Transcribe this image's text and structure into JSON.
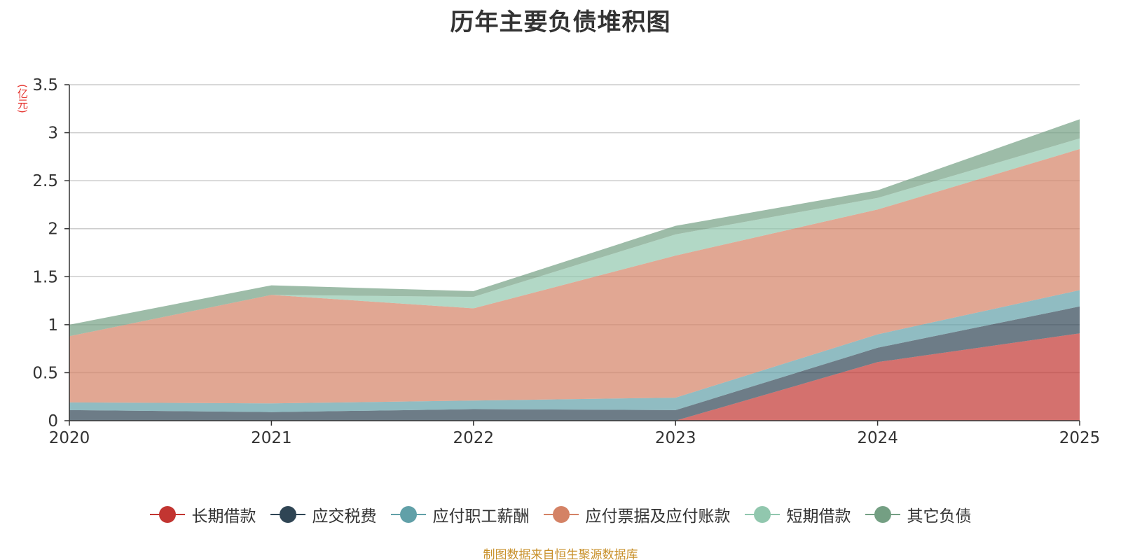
{
  "chart_data": {
    "type": "area",
    "stacked": true,
    "title": "历年主要负债堆积图",
    "ylabel": "(亿元)",
    "xlabel": "",
    "ylim": [
      0,
      3.5
    ],
    "yticks": [
      0,
      0.5,
      1,
      1.5,
      2,
      2.5,
      3,
      3.5
    ],
    "yticklabels": [
      "0",
      "0.5",
      "1",
      "1.5",
      "2",
      "2.5",
      "3",
      "3.5"
    ],
    "categories": [
      "2020",
      "2021",
      "2022",
      "2023",
      "2024",
      "2025"
    ],
    "grid": true,
    "legend_position": "bottom",
    "series": [
      {
        "name": "长期借款",
        "color": "#c23531",
        "values": [
          0,
          0,
          0,
          0,
          0.61,
          0.91
        ]
      },
      {
        "name": "应交税费",
        "color": "#2f4554",
        "values": [
          0.11,
          0.09,
          0.12,
          0.11,
          0.15,
          0.28
        ]
      },
      {
        "name": "应付职工薪酬",
        "color": "#61a0a8",
        "values": [
          0.08,
          0.09,
          0.09,
          0.13,
          0.14,
          0.17
        ]
      },
      {
        "name": "应付票据及应付账款",
        "color": "#d48265",
        "values": [
          0.69,
          1.13,
          0.96,
          1.48,
          1.3,
          1.47
        ]
      },
      {
        "name": "短期借款",
        "color": "#91c7ae",
        "values": [
          0,
          0,
          0.12,
          0.22,
          0.12,
          0.11
        ]
      },
      {
        "name": "其它负债",
        "color": "#749f83",
        "values": [
          0.12,
          0.1,
          0.06,
          0.09,
          0.08,
          0.2
        ]
      }
    ],
    "source": "制图数据来自恒生聚源数据库"
  }
}
